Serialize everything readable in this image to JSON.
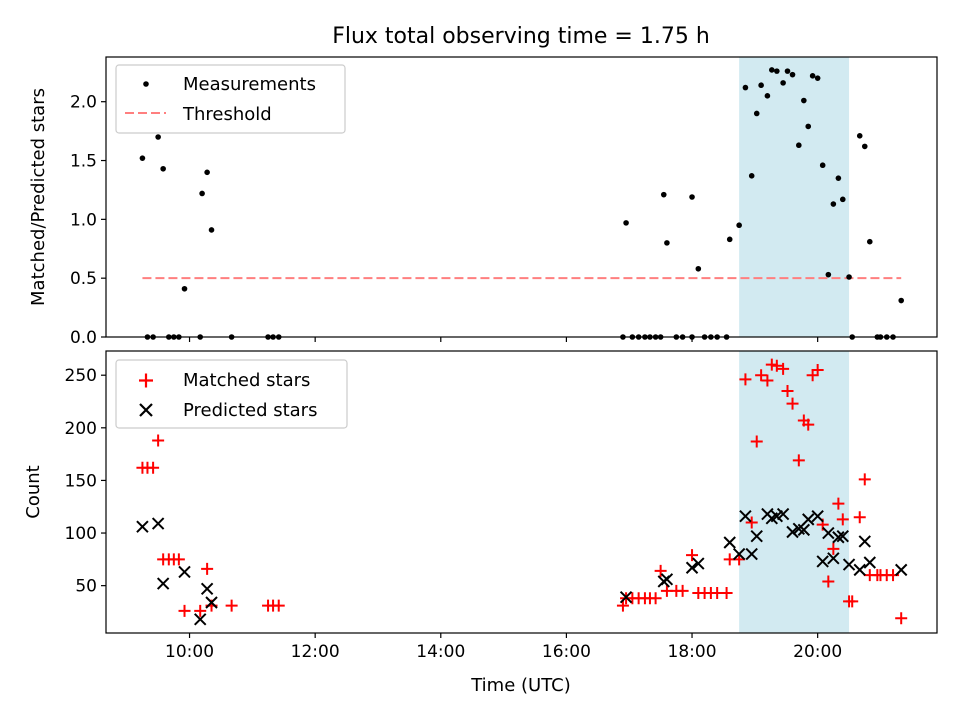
{
  "title": "Flux total observing time = 1.75 h",
  "colors": {
    "measure": "#000000",
    "threshold": "#ff7f7f",
    "matched": "#ff0000",
    "predicted": "#000000",
    "shade": "#add8e6"
  },
  "chart_data": [
    {
      "type": "scatter",
      "panel": "top",
      "xlabel": "",
      "ylabel": "Matched/Predicted stars",
      "xlim": [
        8.67,
        21.9
      ],
      "ylim": [
        0,
        2.38
      ],
      "xtick_values": [
        10,
        12,
        14,
        16,
        18,
        20
      ],
      "ytick_values": [
        0.0,
        0.5,
        1.0,
        1.5,
        2.0
      ],
      "ytick_labels": [
        "0.0",
        "0.5",
        "1.0",
        "1.5",
        "2.0"
      ],
      "shaded_region": [
        18.75,
        20.5
      ],
      "legend": {
        "position": "top-left",
        "entries": [
          "Measurements",
          "Threshold"
        ]
      },
      "threshold": {
        "name": "Threshold",
        "y": 0.5,
        "x_range": [
          9.25,
          21.33
        ]
      },
      "series": [
        {
          "name": "Measurements",
          "points": [
            [
              9.25,
              1.52
            ],
            [
              9.33,
              0
            ],
            [
              9.42,
              0
            ],
            [
              9.5,
              1.7
            ],
            [
              9.58,
              1.43
            ],
            [
              9.67,
              0
            ],
            [
              9.75,
              0
            ],
            [
              9.83,
              0
            ],
            [
              9.92,
              0.41
            ],
            [
              10.17,
              0
            ],
            [
              10.2,
              1.22
            ],
            [
              10.28,
              1.4
            ],
            [
              10.35,
              0.91
            ],
            [
              10.67,
              0
            ],
            [
              11.25,
              0
            ],
            [
              11.33,
              0
            ],
            [
              11.42,
              0
            ],
            [
              16.9,
              0
            ],
            [
              16.95,
              0.97
            ],
            [
              17.05,
              0
            ],
            [
              17.15,
              0
            ],
            [
              17.25,
              0
            ],
            [
              17.33,
              0
            ],
            [
              17.42,
              0
            ],
            [
              17.5,
              0
            ],
            [
              17.55,
              1.21
            ],
            [
              17.6,
              0.8
            ],
            [
              17.75,
              0
            ],
            [
              17.85,
              0
            ],
            [
              18.0,
              1.19
            ],
            [
              18.0,
              0
            ],
            [
              18.1,
              0.58
            ],
            [
              18.2,
              0
            ],
            [
              18.3,
              0
            ],
            [
              18.4,
              0
            ],
            [
              18.55,
              0
            ],
            [
              18.6,
              0.83
            ],
            [
              18.75,
              0.95
            ],
            [
              18.85,
              2.12
            ],
            [
              18.95,
              1.37
            ],
            [
              19.03,
              1.9
            ],
            [
              19.1,
              2.14
            ],
            [
              19.2,
              2.05
            ],
            [
              19.27,
              2.27
            ],
            [
              19.35,
              2.26
            ],
            [
              19.45,
              2.16
            ],
            [
              19.52,
              2.26
            ],
            [
              19.6,
              2.23
            ],
            [
              19.7,
              1.63
            ],
            [
              19.78,
              2.01
            ],
            [
              19.85,
              1.79
            ],
            [
              19.92,
              2.22
            ],
            [
              20.0,
              2.2
            ],
            [
              20.08,
              1.46
            ],
            [
              20.17,
              0.53
            ],
            [
              20.25,
              1.13
            ],
            [
              20.33,
              1.35
            ],
            [
              20.4,
              1.17
            ],
            [
              20.5,
              0.51
            ],
            [
              20.55,
              0
            ],
            [
              20.67,
              1.71
            ],
            [
              20.75,
              1.62
            ],
            [
              20.83,
              0.81
            ],
            [
              20.95,
              0
            ],
            [
              21.0,
              0
            ],
            [
              21.1,
              0
            ],
            [
              21.2,
              0
            ],
            [
              21.33,
              0.31
            ]
          ]
        }
      ]
    },
    {
      "type": "scatter",
      "panel": "bottom",
      "xlabel": "Time (UTC)",
      "ylabel": "Count",
      "xlim": [
        8.67,
        21.9
      ],
      "ylim": [
        5,
        273
      ],
      "xtick_values": [
        10,
        12,
        14,
        16,
        18,
        20
      ],
      "xtick_labels": [
        "10:00",
        "12:00",
        "14:00",
        "16:00",
        "18:00",
        "20:00"
      ],
      "ytick_values": [
        50,
        100,
        150,
        200,
        250
      ],
      "ytick_labels": [
        "50",
        "100",
        "150",
        "200",
        "250"
      ],
      "shaded_region": [
        18.75,
        20.5
      ],
      "legend": {
        "position": "top-left",
        "entries": [
          "Matched stars",
          "Predicted stars"
        ]
      },
      "series": [
        {
          "name": "Matched stars",
          "marker": "plus",
          "points": [
            [
              9.25,
              162
            ],
            [
              9.33,
              162
            ],
            [
              9.42,
              162
            ],
            [
              9.5,
              188
            ],
            [
              9.58,
              75
            ],
            [
              9.67,
              75
            ],
            [
              9.75,
              75
            ],
            [
              9.83,
              75
            ],
            [
              9.92,
              26
            ],
            [
              10.17,
              26
            ],
            [
              10.28,
              66
            ],
            [
              10.35,
              31
            ],
            [
              10.67,
              31
            ],
            [
              11.25,
              31
            ],
            [
              11.33,
              31
            ],
            [
              11.42,
              31
            ],
            [
              16.9,
              31
            ],
            [
              16.95,
              38
            ],
            [
              17.05,
              38
            ],
            [
              17.15,
              38
            ],
            [
              17.25,
              38
            ],
            [
              17.33,
              38
            ],
            [
              17.42,
              38
            ],
            [
              17.5,
              64
            ],
            [
              17.6,
              45
            ],
            [
              17.75,
              45
            ],
            [
              17.85,
              45
            ],
            [
              18.0,
              79
            ],
            [
              18.1,
              43
            ],
            [
              18.2,
              43
            ],
            [
              18.3,
              43
            ],
            [
              18.4,
              43
            ],
            [
              18.55,
              43
            ],
            [
              18.6,
              75
            ],
            [
              18.75,
              75
            ],
            [
              18.85,
              246
            ],
            [
              18.95,
              110
            ],
            [
              19.03,
              187
            ],
            [
              19.1,
              250
            ],
            [
              19.2,
              245
            ],
            [
              19.27,
              260
            ],
            [
              19.35,
              259
            ],
            [
              19.45,
              256
            ],
            [
              19.52,
              235
            ],
            [
              19.6,
              223
            ],
            [
              19.7,
              169
            ],
            [
              19.78,
              207
            ],
            [
              19.85,
              203
            ],
            [
              19.92,
              250
            ],
            [
              20.0,
              255
            ],
            [
              20.08,
              108
            ],
            [
              20.17,
              54
            ],
            [
              20.25,
              85
            ],
            [
              20.33,
              128
            ],
            [
              20.4,
              113
            ],
            [
              20.5,
              35
            ],
            [
              20.55,
              35
            ],
            [
              20.67,
              115
            ],
            [
              20.75,
              151
            ],
            [
              20.83,
              60
            ],
            [
              20.95,
              60
            ],
            [
              21.0,
              60
            ],
            [
              21.1,
              60
            ],
            [
              21.2,
              60
            ],
            [
              21.33,
              19
            ]
          ]
        },
        {
          "name": "Predicted stars",
          "marker": "x",
          "points": [
            [
              9.25,
              106
            ],
            [
              9.5,
              109
            ],
            [
              9.58,
              52
            ],
            [
              9.92,
              63
            ],
            [
              10.17,
              18
            ],
            [
              10.28,
              47
            ],
            [
              10.35,
              34
            ],
            [
              16.95,
              39
            ],
            [
              17.55,
              54
            ],
            [
              17.6,
              56
            ],
            [
              18.0,
              67
            ],
            [
              18.1,
              71
            ],
            [
              18.6,
              91
            ],
            [
              18.75,
              80
            ],
            [
              18.85,
              116
            ],
            [
              18.95,
              80
            ],
            [
              19.03,
              97
            ],
            [
              19.2,
              118
            ],
            [
              19.27,
              114
            ],
            [
              19.35,
              116
            ],
            [
              19.45,
              118
            ],
            [
              19.6,
              101
            ],
            [
              19.7,
              104
            ],
            [
              19.78,
              103
            ],
            [
              19.85,
              113
            ],
            [
              20.0,
              116
            ],
            [
              20.08,
              73
            ],
            [
              20.17,
              100
            ],
            [
              20.25,
              76
            ],
            [
              20.33,
              96
            ],
            [
              20.4,
              97
            ],
            [
              20.5,
              70
            ],
            [
              20.67,
              65
            ],
            [
              20.75,
              92
            ],
            [
              20.83,
              72
            ],
            [
              21.33,
              65
            ]
          ]
        }
      ]
    }
  ]
}
